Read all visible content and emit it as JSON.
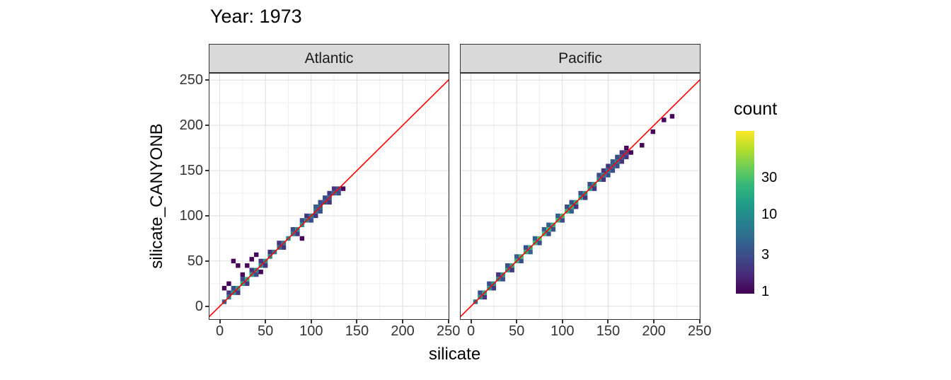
{
  "title": "Year: 1973",
  "x_axis": {
    "label": "silicate",
    "ticks": [
      0,
      50,
      100,
      150,
      200,
      250
    ]
  },
  "y_axis": {
    "label": "silicate_CANYONB",
    "ticks": [
      0,
      50,
      100,
      150,
      200,
      250
    ]
  },
  "legend": {
    "title": "count",
    "ticks": [
      30,
      10,
      3,
      1
    ]
  },
  "colors": {
    "reference_line": "#ff0000",
    "strip_bg": "#d9d9d9",
    "panel_border": "#333333",
    "grid_major": "#dedede",
    "grid_minor": "#efefef",
    "viridis": [
      "#440154",
      "#482878",
      "#3e4989",
      "#31688e",
      "#26828e",
      "#1f9e89",
      "#35b779",
      "#6ece58",
      "#b5de2b",
      "#fde725"
    ]
  },
  "chart_data": {
    "type": "heatmap",
    "title": "Year: 1973",
    "xlabel": "silicate",
    "ylabel": "silicate_CANYONB",
    "xlim": [
      -12,
      251
    ],
    "ylim": [
      -15,
      258
    ],
    "x_ticks": [
      0,
      50,
      100,
      150,
      200,
      250
    ],
    "y_ticks": [
      0,
      50,
      100,
      150,
      200,
      250
    ],
    "bin_size": 5,
    "grid": true,
    "legend_position": "right",
    "count_scale": {
      "type": "log",
      "min": 0.93,
      "max": 120,
      "ticks": [
        1,
        3,
        10,
        30
      ]
    },
    "reference_line": {
      "type": "y=x",
      "color": "#ff0000"
    },
    "facets": [
      {
        "name": "Atlantic",
        "points": [
          [
            5,
            5,
            4
          ],
          [
            10,
            10,
            8
          ],
          [
            15,
            15,
            12
          ],
          [
            20,
            20,
            15
          ],
          [
            25,
            25,
            18
          ],
          [
            30,
            30,
            20
          ],
          [
            35,
            35,
            15
          ],
          [
            40,
            40,
            12
          ],
          [
            45,
            45,
            10
          ],
          [
            50,
            50,
            12
          ],
          [
            55,
            55,
            10
          ],
          [
            60,
            60,
            8
          ],
          [
            65,
            65,
            6
          ],
          [
            70,
            70,
            8
          ],
          [
            75,
            75,
            10
          ],
          [
            80,
            80,
            8
          ],
          [
            85,
            85,
            10
          ],
          [
            90,
            90,
            12
          ],
          [
            95,
            95,
            10
          ],
          [
            100,
            100,
            8
          ],
          [
            105,
            105,
            6
          ],
          [
            110,
            110,
            5
          ],
          [
            115,
            115,
            4
          ],
          [
            120,
            120,
            4
          ],
          [
            125,
            125,
            5
          ],
          [
            130,
            130,
            3
          ],
          [
            10,
            15,
            2
          ],
          [
            15,
            20,
            3
          ],
          [
            20,
            15,
            2
          ],
          [
            25,
            30,
            3
          ],
          [
            30,
            25,
            2
          ],
          [
            35,
            40,
            2
          ],
          [
            40,
            35,
            3
          ],
          [
            45,
            50,
            2
          ],
          [
            50,
            45,
            2
          ],
          [
            55,
            60,
            2
          ],
          [
            65,
            70,
            2
          ],
          [
            70,
            65,
            2
          ],
          [
            80,
            85,
            3
          ],
          [
            85,
            80,
            2
          ],
          [
            90,
            95,
            3
          ],
          [
            95,
            100,
            2
          ],
          [
            100,
            95,
            3
          ],
          [
            105,
            110,
            4
          ],
          [
            110,
            105,
            3
          ],
          [
            115,
            120,
            3
          ],
          [
            120,
            115,
            2
          ],
          [
            125,
            130,
            2
          ],
          [
            130,
            125,
            3
          ],
          [
            135,
            130,
            1
          ],
          [
            120,
            125,
            2
          ],
          [
            110,
            115,
            3
          ],
          [
            105,
            100,
            2
          ],
          [
            5,
            20,
            1
          ],
          [
            10,
            25,
            1
          ],
          [
            15,
            50,
            1
          ],
          [
            20,
            45,
            1
          ],
          [
            25,
            35,
            1
          ],
          [
            30,
            45,
            1
          ],
          [
            35,
            52,
            1
          ],
          [
            40,
            57,
            1
          ],
          [
            45,
            38,
            1
          ],
          [
            90,
            75,
            1
          ]
        ]
      },
      {
        "name": "Pacific",
        "points": [
          [
            5,
            5,
            6
          ],
          [
            10,
            10,
            12
          ],
          [
            15,
            15,
            18
          ],
          [
            20,
            20,
            15
          ],
          [
            25,
            25,
            12
          ],
          [
            30,
            30,
            10
          ],
          [
            35,
            35,
            12
          ],
          [
            40,
            40,
            15
          ],
          [
            45,
            45,
            18
          ],
          [
            50,
            50,
            22
          ],
          [
            55,
            55,
            25
          ],
          [
            60,
            60,
            22
          ],
          [
            65,
            65,
            20
          ],
          [
            70,
            70,
            25
          ],
          [
            75,
            75,
            30
          ],
          [
            80,
            80,
            28
          ],
          [
            85,
            85,
            25
          ],
          [
            90,
            90,
            22
          ],
          [
            95,
            95,
            25
          ],
          [
            100,
            100,
            28
          ],
          [
            105,
            105,
            25
          ],
          [
            110,
            110,
            20
          ],
          [
            115,
            115,
            18
          ],
          [
            120,
            120,
            15
          ],
          [
            125,
            125,
            12
          ],
          [
            130,
            130,
            14
          ],
          [
            135,
            135,
            12
          ],
          [
            140,
            140,
            10
          ],
          [
            145,
            145,
            8
          ],
          [
            150,
            150,
            6
          ],
          [
            155,
            155,
            5
          ],
          [
            160,
            160,
            6
          ],
          [
            165,
            165,
            4
          ],
          [
            170,
            170,
            3
          ],
          [
            10,
            15,
            3
          ],
          [
            15,
            10,
            2
          ],
          [
            20,
            25,
            3
          ],
          [
            25,
            20,
            2
          ],
          [
            30,
            35,
            2
          ],
          [
            35,
            30,
            3
          ],
          [
            40,
            45,
            3
          ],
          [
            45,
            40,
            2
          ],
          [
            50,
            55,
            4
          ],
          [
            55,
            50,
            3
          ],
          [
            60,
            65,
            3
          ],
          [
            65,
            60,
            4
          ],
          [
            70,
            75,
            4
          ],
          [
            75,
            70,
            3
          ],
          [
            80,
            85,
            4
          ],
          [
            85,
            80,
            3
          ],
          [
            90,
            85,
            3
          ],
          [
            85,
            90,
            4
          ],
          [
            95,
            100,
            4
          ],
          [
            100,
            95,
            3
          ],
          [
            105,
            110,
            3
          ],
          [
            110,
            105,
            4
          ],
          [
            115,
            110,
            2
          ],
          [
            110,
            115,
            3
          ],
          [
            120,
            125,
            3
          ],
          [
            125,
            120,
            2
          ],
          [
            130,
            135,
            3
          ],
          [
            135,
            130,
            2
          ],
          [
            140,
            145,
            3
          ],
          [
            145,
            140,
            2
          ],
          [
            150,
            145,
            3
          ],
          [
            145,
            150,
            2
          ],
          [
            155,
            150,
            3
          ],
          [
            150,
            155,
            2
          ],
          [
            160,
            155,
            3
          ],
          [
            155,
            160,
            4
          ],
          [
            165,
            160,
            2
          ],
          [
            160,
            165,
            3
          ],
          [
            165,
            170,
            2
          ],
          [
            170,
            165,
            2
          ],
          [
            175,
            170,
            1
          ],
          [
            170,
            175,
            1
          ],
          [
            187,
            178,
            1
          ],
          [
            199,
            193,
            1
          ],
          [
            211,
            206,
            1
          ],
          [
            220,
            210,
            1
          ]
        ]
      }
    ]
  }
}
